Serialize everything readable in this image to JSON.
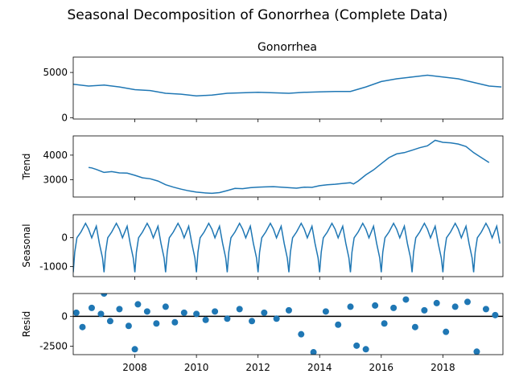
{
  "figure": {
    "suptitle": "Seasonal Decomposition of Gonorrhea (Complete Data)"
  },
  "chart_data": [
    {
      "panel": "observed",
      "type": "line",
      "title": "Gonorrhea",
      "ylabel": "",
      "ylim": [
        -150,
        6700
      ],
      "yticks": [
        0,
        5000
      ],
      "color": "#1f77b4",
      "x": [
        2006.0,
        2006.5,
        2007.0,
        2007.5,
        2008.0,
        2008.5,
        2009.0,
        2009.5,
        2010.0,
        2010.5,
        2011.0,
        2011.5,
        2012.0,
        2012.5,
        2013.0,
        2013.5,
        2014.0,
        2014.5,
        2015.0,
        2015.5,
        2016.0,
        2016.5,
        2017.0,
        2017.5,
        2018.0,
        2018.5,
        2019.0,
        2019.5,
        2019.9
      ],
      "values": [
        3700,
        3500,
        3600,
        3400,
        3100,
        3000,
        2700,
        2600,
        2400,
        2500,
        2700,
        2750,
        2800,
        2750,
        2700,
        2800,
        2850,
        2900,
        2900,
        3400,
        4000,
        4300,
        4500,
        4700,
        4500,
        4300,
        3900,
        3500,
        3400
      ]
    },
    {
      "panel": "trend",
      "type": "line",
      "title": "",
      "ylabel": "Trend",
      "ylim": [
        2300,
        4780
      ],
      "yticks": [
        3000,
        4000
      ],
      "color": "#1f77b4",
      "x": [
        2006.5,
        2006.6,
        2006.75,
        2007.0,
        2007.25,
        2007.5,
        2007.75,
        2008.0,
        2008.25,
        2008.5,
        2008.75,
        2009.0,
        2009.25,
        2009.5,
        2009.75,
        2010.0,
        2010.25,
        2010.5,
        2010.75,
        2011.0,
        2011.25,
        2011.5,
        2011.75,
        2012.0,
        2012.25,
        2012.5,
        2012.75,
        2013.0,
        2013.25,
        2013.5,
        2013.75,
        2014.0,
        2014.25,
        2014.5,
        2014.75,
        2015.0,
        2015.1,
        2015.25,
        2015.5,
        2015.75,
        2016.0,
        2016.25,
        2016.5,
        2016.75,
        2017.0,
        2017.25,
        2017.5,
        2017.75,
        2018.0,
        2018.25,
        2018.5,
        2018.75,
        2019.0,
        2019.25,
        2019.5
      ],
      "values": [
        3500,
        3480,
        3420,
        3300,
        3330,
        3280,
        3270,
        3180,
        3080,
        3040,
        2950,
        2800,
        2700,
        2620,
        2550,
        2500,
        2470,
        2450,
        2480,
        2560,
        2650,
        2640,
        2680,
        2700,
        2710,
        2720,
        2700,
        2680,
        2660,
        2700,
        2690,
        2760,
        2800,
        2820,
        2850,
        2880,
        2830,
        2950,
        3200,
        3400,
        3650,
        3900,
        4050,
        4100,
        4200,
        4300,
        4380,
        4600,
        4520,
        4500,
        4450,
        4350,
        4100,
        3900,
        3700
      ]
    },
    {
      "panel": "seasonal",
      "type": "line",
      "title": "",
      "ylabel": "Seasonal",
      "ylim": [
        -1350,
        800
      ],
      "yticks": [
        -1000,
        0
      ],
      "color": "#1f77b4",
      "period_years": 1,
      "cycle_shape": [
        [
          0.0,
          -1200
        ],
        [
          0.05,
          -500
        ],
        [
          0.12,
          0
        ],
        [
          0.25,
          200
        ],
        [
          0.4,
          500
        ],
        [
          0.5,
          300
        ],
        [
          0.6,
          0
        ],
        [
          0.75,
          400
        ],
        [
          0.85,
          -200
        ],
        [
          0.95,
          -700
        ],
        [
          1.0,
          -1200
        ]
      ],
      "x_start": 2006.0,
      "x_end": 2019.9
    },
    {
      "panel": "residual",
      "type": "scatter",
      "title": "",
      "ylabel": "Resid",
      "xlabel": "",
      "ylim": [
        -3200,
        1900
      ],
      "yticks": [
        -2500,
        0
      ],
      "color": "#1f77b4",
      "zero_line": true,
      "x": [
        2006.1,
        2006.3,
        2006.6,
        2006.9,
        2007.0,
        2007.2,
        2007.5,
        2007.8,
        2008.0,
        2008.1,
        2008.4,
        2008.7,
        2009.0,
        2009.3,
        2009.6,
        2010.0,
        2010.3,
        2010.6,
        2011.0,
        2011.4,
        2011.8,
        2012.2,
        2012.6,
        2013.0,
        2013.4,
        2013.8,
        2014.2,
        2014.6,
        2015.0,
        2015.2,
        2015.5,
        2015.8,
        2016.1,
        2016.4,
        2016.8,
        2017.1,
        2017.4,
        2017.8,
        2018.1,
        2018.4,
        2018.8,
        2019.1,
        2019.4,
        2019.7
      ],
      "values": [
        300,
        -900,
        700,
        200,
        1900,
        -400,
        600,
        -800,
        -2750,
        1000,
        400,
        -600,
        800,
        -500,
        300,
        200,
        -300,
        400,
        -200,
        600,
        -400,
        300,
        -200,
        500,
        -1500,
        -3000,
        400,
        -700,
        800,
        -2450,
        -2750,
        900,
        -600,
        700,
        1400,
        -900,
        500,
        1100,
        -1300,
        800,
        1200,
        -2950,
        600,
        100
      ]
    }
  ],
  "x_axis": {
    "ticks": [
      "2008",
      "2010",
      "2012",
      "2014",
      "2016",
      "2018"
    ],
    "range": [
      2006.0,
      2019.95
    ]
  }
}
